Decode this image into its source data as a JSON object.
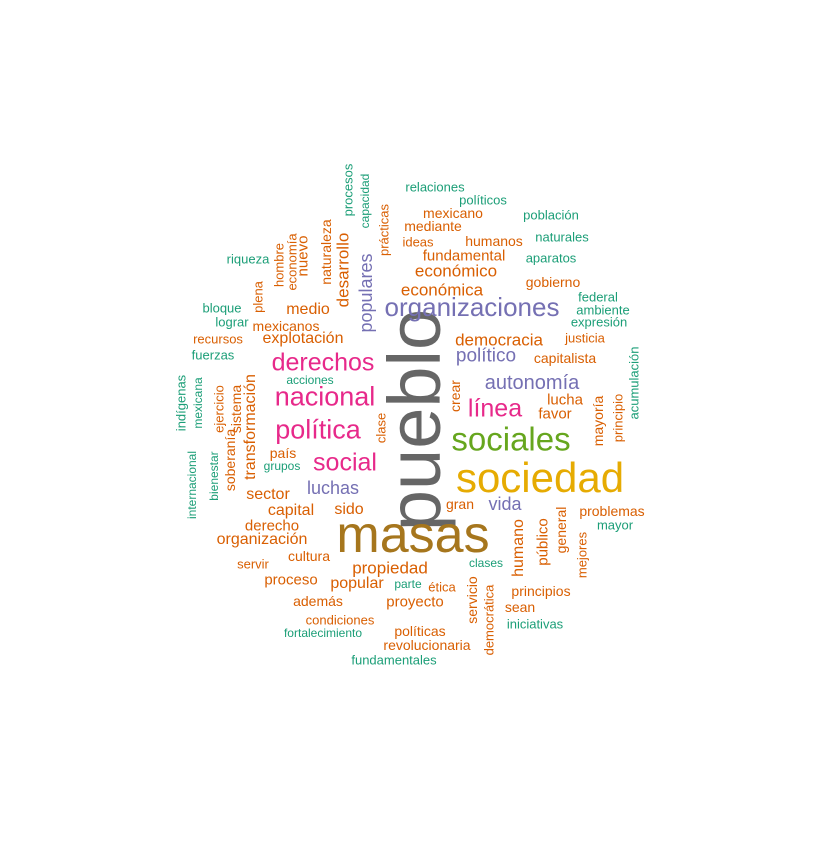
{
  "colors": {
    "green": "#1b9e77",
    "orange": "#d95f02",
    "purple": "#7570b3",
    "magenta": "#e7298a",
    "lime": "#66a61e",
    "gold": "#e6ab02",
    "brown": "#a6761d",
    "gray": "#666666"
  },
  "words": [
    {
      "text": "pueblo",
      "color": "gray"
    },
    {
      "text": "masas",
      "color": "brown"
    },
    {
      "text": "sociedad",
      "color": "gold"
    },
    {
      "text": "sociales",
      "color": "lime"
    },
    {
      "text": "organizaciones",
      "color": "purple"
    },
    {
      "text": "nacional",
      "color": "magenta"
    },
    {
      "text": "política",
      "color": "magenta"
    },
    {
      "text": "derechos",
      "color": "magenta"
    },
    {
      "text": "social",
      "color": "magenta"
    },
    {
      "text": "línea",
      "color": "magenta"
    },
    {
      "text": "autonomía",
      "color": "purple"
    },
    {
      "text": "político",
      "color": "purple"
    },
    {
      "text": "luchas",
      "color": "purple"
    },
    {
      "text": "vida",
      "color": "purple"
    },
    {
      "text": "populares",
      "color": "purple"
    },
    {
      "text": "económica",
      "color": "orange"
    },
    {
      "text": "económico",
      "color": "orange"
    },
    {
      "text": "democracia",
      "color": "orange"
    },
    {
      "text": "fundamental",
      "color": "orange"
    },
    {
      "text": "humanos",
      "color": "orange"
    },
    {
      "text": "mediante",
      "color": "orange"
    },
    {
      "text": "mexicano",
      "color": "orange"
    },
    {
      "text": "ideas",
      "color": "orange"
    },
    {
      "text": "gobierno",
      "color": "orange"
    },
    {
      "text": "capitalista",
      "color": "orange"
    },
    {
      "text": "justicia",
      "color": "orange"
    },
    {
      "text": "lucha",
      "color": "orange"
    },
    {
      "text": "favor",
      "color": "orange"
    },
    {
      "text": "crear",
      "color": "orange"
    },
    {
      "text": "mayoría",
      "color": "orange"
    },
    {
      "text": "principio",
      "color": "orange"
    },
    {
      "text": "explotación",
      "color": "orange"
    },
    {
      "text": "medio",
      "color": "orange"
    },
    {
      "text": "mexicanos",
      "color": "orange"
    },
    {
      "text": "recursos",
      "color": "orange"
    },
    {
      "text": "transformación",
      "color": "orange"
    },
    {
      "text": "sistema",
      "color": "orange"
    },
    {
      "text": "ejercicio",
      "color": "orange"
    },
    {
      "text": "soberanía",
      "color": "orange"
    },
    {
      "text": "país",
      "color": "orange"
    },
    {
      "text": "sector",
      "color": "orange"
    },
    {
      "text": "capital",
      "color": "orange"
    },
    {
      "text": "sido",
      "color": "orange"
    },
    {
      "text": "derecho",
      "color": "orange"
    },
    {
      "text": "organización",
      "color": "orange"
    },
    {
      "text": "cultura",
      "color": "orange"
    },
    {
      "text": "servir",
      "color": "orange"
    },
    {
      "text": "propiedad",
      "color": "orange"
    },
    {
      "text": "proceso",
      "color": "orange"
    },
    {
      "text": "popular",
      "color": "orange"
    },
    {
      "text": "además",
      "color": "orange"
    },
    {
      "text": "proyecto",
      "color": "orange"
    },
    {
      "text": "condiciones",
      "color": "orange"
    },
    {
      "text": "políticas",
      "color": "orange"
    },
    {
      "text": "revolucionaria",
      "color": "orange"
    },
    {
      "text": "ética",
      "color": "orange"
    },
    {
      "text": "gran",
      "color": "orange"
    },
    {
      "text": "clase",
      "color": "orange"
    },
    {
      "text": "humano",
      "color": "orange"
    },
    {
      "text": "público",
      "color": "orange"
    },
    {
      "text": "general",
      "color": "orange"
    },
    {
      "text": "mejores",
      "color": "orange"
    },
    {
      "text": "problemas",
      "color": "orange"
    },
    {
      "text": "principios",
      "color": "orange"
    },
    {
      "text": "sean",
      "color": "orange"
    },
    {
      "text": "servicio",
      "color": "orange"
    },
    {
      "text": "democrática",
      "color": "orange"
    },
    {
      "text": "desarrollo",
      "color": "orange"
    },
    {
      "text": "naturaleza",
      "color": "orange"
    },
    {
      "text": "nuevo",
      "color": "orange"
    },
    {
      "text": "economía",
      "color": "orange"
    },
    {
      "text": "hombre",
      "color": "orange"
    },
    {
      "text": "plena",
      "color": "orange"
    },
    {
      "text": "prácticas",
      "color": "orange"
    },
    {
      "text": "relaciones",
      "color": "green"
    },
    {
      "text": "políticos",
      "color": "green"
    },
    {
      "text": "población",
      "color": "green"
    },
    {
      "text": "naturales",
      "color": "green"
    },
    {
      "text": "aparatos",
      "color": "green"
    },
    {
      "text": "federal",
      "color": "green"
    },
    {
      "text": "ambiente",
      "color": "green"
    },
    {
      "text": "expresión",
      "color": "green"
    },
    {
      "text": "acumulación",
      "color": "green"
    },
    {
      "text": "mayor",
      "color": "green"
    },
    {
      "text": "iniciativas",
      "color": "green"
    },
    {
      "text": "clases",
      "color": "green"
    },
    {
      "text": "parte",
      "color": "green"
    },
    {
      "text": "fortalecimiento",
      "color": "green"
    },
    {
      "text": "fundamentales",
      "color": "green"
    },
    {
      "text": "riqueza",
      "color": "green"
    },
    {
      "text": "bloque",
      "color": "green"
    },
    {
      "text": "lograr",
      "color": "green"
    },
    {
      "text": "fuerzas",
      "color": "green"
    },
    {
      "text": "acciones",
      "color": "green"
    },
    {
      "text": "indígenas",
      "color": "green"
    },
    {
      "text": "mexicana",
      "color": "green"
    },
    {
      "text": "internacional",
      "color": "green"
    },
    {
      "text": "bienestar",
      "color": "green"
    },
    {
      "text": "grupos",
      "color": "green"
    },
    {
      "text": "procesos",
      "color": "green"
    },
    {
      "text": "capacidad",
      "color": "green"
    }
  ]
}
